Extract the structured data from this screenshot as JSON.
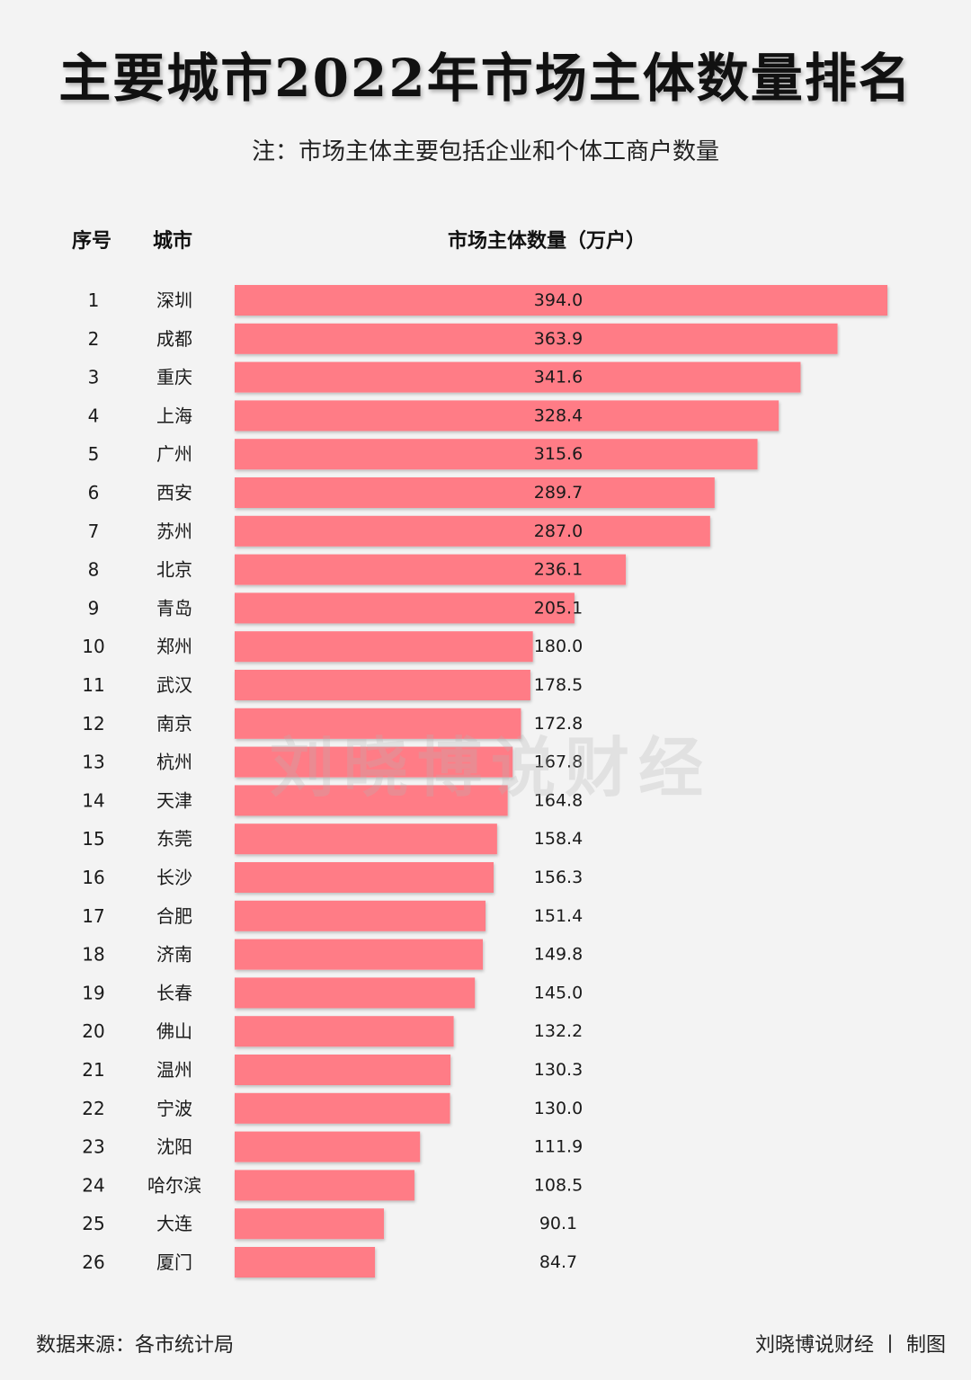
{
  "header": {
    "title": "主要城市2022年市场主体数量排名",
    "subtitle": "注：市场主体主要包括企业和个体工商户数量"
  },
  "table": {
    "rank_header": "序号",
    "city_header": "城市",
    "value_header": "市场主体数量（万户）"
  },
  "watermark": "刘晓博说财经",
  "footer": {
    "source": "数据来源：各市统计局",
    "credit": "刘晓博说财经 丨 制图"
  },
  "colors": {
    "bar": "#ff7b86",
    "background": "#f3f3f3",
    "text": "#1a1a1a"
  },
  "chart_data": {
    "type": "bar",
    "orientation": "horizontal",
    "title": "主要城市2022年市场主体数量排名",
    "value_label": "市场主体数量（万户）",
    "ranks": [
      "1",
      "2",
      "3",
      "4",
      "5",
      "6",
      "7",
      "8",
      "9",
      "10",
      "11",
      "12",
      "13",
      "14",
      "15",
      "16",
      "17",
      "18",
      "19",
      "20",
      "21",
      "22",
      "23",
      "24",
      "25",
      "26"
    ],
    "categories": [
      "深圳",
      "成都",
      "重庆",
      "上海",
      "广州",
      "西安",
      "苏州",
      "北京",
      "青岛",
      "郑州",
      "武汉",
      "南京",
      "杭州",
      "天津",
      "东莞",
      "长沙",
      "合肥",
      "济南",
      "长春",
      "佛山",
      "温州",
      "宁波",
      "沈阳",
      "哈尔滨",
      "大连",
      "厦门"
    ],
    "values": [
      394.0,
      363.9,
      341.6,
      328.4,
      315.6,
      289.7,
      287.0,
      236.1,
      205.1,
      180.0,
      178.5,
      172.8,
      167.8,
      164.8,
      158.4,
      156.3,
      151.4,
      149.8,
      145.0,
      132.2,
      130.3,
      130.0,
      111.9,
      108.5,
      90.1,
      84.7
    ],
    "value_labels": [
      "394.0",
      "363.9",
      "341.6",
      "328.4",
      "315.6",
      "289.7",
      "287.0",
      "236.1",
      "205.1",
      "180.0",
      "178.5",
      "172.8",
      "167.8",
      "164.8",
      "158.4",
      "156.3",
      "151.4",
      "149.8",
      "145.0",
      "132.2",
      "130.3",
      "130.0",
      "111.9",
      "108.5",
      "90.1",
      "84.7"
    ],
    "xlim": [
      0,
      394.0
    ],
    "grid": false,
    "legend": "none"
  }
}
